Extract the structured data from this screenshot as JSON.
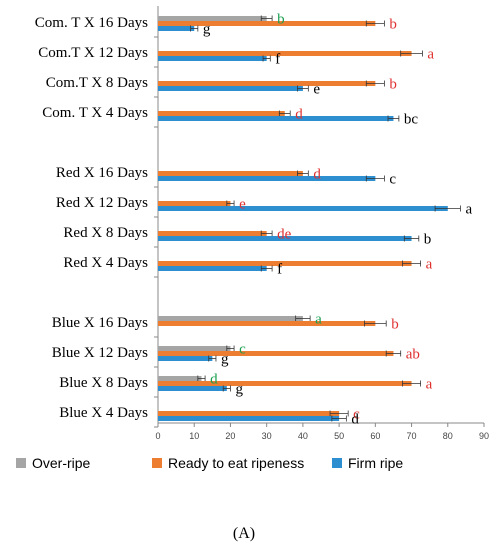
{
  "chart_data": {
    "type": "bar",
    "orientation": "horizontal",
    "xlim": [
      0,
      90
    ],
    "xticks": [
      0,
      10,
      20,
      30,
      40,
      50,
      60,
      70,
      80,
      90
    ],
    "panel_label": "(A)",
    "series": [
      {
        "name": "Over-ripe",
        "color": "#a5a5a5"
      },
      {
        "name": "Ready to eat ripeness",
        "color": "#ed7d31"
      },
      {
        "name": "Firm ripe",
        "color": "#2e8fd0"
      }
    ],
    "groups": [
      {
        "categories": [
          {
            "label": "Com. T X 16 Days",
            "bars": [
              {
                "series": 0,
                "value": 30,
                "err": 1.5,
                "letter": "b",
                "letter_color": "#1a9e50"
              },
              {
                "series": 1,
                "value": 60,
                "err": 2.5,
                "letter": "b",
                "letter_color": "#e03030"
              },
              {
                "series": 2,
                "value": 10,
                "err": 1.0,
                "letter": "g",
                "letter_color": "#000000"
              }
            ]
          },
          {
            "label": "Com.T X 12 Days",
            "bars": [
              {
                "series": 1,
                "value": 70,
                "err": 3.0,
                "letter": "a",
                "letter_color": "#e03030"
              },
              {
                "series": 2,
                "value": 30,
                "err": 1.0,
                "letter": "f",
                "letter_color": "#000000"
              }
            ]
          },
          {
            "label": "Com.T X 8 Days",
            "bars": [
              {
                "series": 1,
                "value": 60,
                "err": 2.5,
                "letter": "b",
                "letter_color": "#e03030"
              },
              {
                "series": 2,
                "value": 40,
                "err": 1.5,
                "letter": "e",
                "letter_color": "#000000"
              }
            ]
          },
          {
            "label": "Com. T X 4 Days",
            "bars": [
              {
                "series": 1,
                "value": 35,
                "err": 1.5,
                "letter": "d",
                "letter_color": "#e03030"
              },
              {
                "series": 2,
                "value": 65,
                "err": 1.5,
                "letter": "bc",
                "letter_color": "#000000"
              }
            ]
          }
        ]
      },
      {
        "categories": [
          {
            "label": "Red X 16 Days",
            "bars": [
              {
                "series": 1,
                "value": 40,
                "err": 1.5,
                "letter": "d",
                "letter_color": "#e03030"
              },
              {
                "series": 2,
                "value": 60,
                "err": 2.5,
                "letter": "c",
                "letter_color": "#000000"
              }
            ]
          },
          {
            "label": "Red X 12 Days",
            "bars": [
              {
                "series": 1,
                "value": 20,
                "err": 1.0,
                "letter": "e",
                "letter_color": "#e03030"
              },
              {
                "series": 2,
                "value": 80,
                "err": 3.5,
                "letter": "a",
                "letter_color": "#000000"
              }
            ]
          },
          {
            "label": "Red X 8 Days",
            "bars": [
              {
                "series": 1,
                "value": 30,
                "err": 1.5,
                "letter": "de",
                "letter_color": "#e03030"
              },
              {
                "series": 2,
                "value": 70,
                "err": 2.0,
                "letter": "b",
                "letter_color": "#000000"
              }
            ]
          },
          {
            "label": "Red X 4 Days",
            "bars": [
              {
                "series": 1,
                "value": 70,
                "err": 2.5,
                "letter": "a",
                "letter_color": "#e03030"
              },
              {
                "series": 2,
                "value": 30,
                "err": 1.5,
                "letter": "f",
                "letter_color": "#000000"
              }
            ]
          }
        ]
      },
      {
        "categories": [
          {
            "label": "Blue X 16 Days",
            "bars": [
              {
                "series": 0,
                "value": 40,
                "err": 2.0,
                "letter": "a",
                "letter_color": "#1a9e50"
              },
              {
                "series": 1,
                "value": 60,
                "err": 3.0,
                "letter": "b",
                "letter_color": "#e03030"
              }
            ]
          },
          {
            "label": "Blue X 12 Days",
            "bars": [
              {
                "series": 0,
                "value": 20,
                "err": 1.0,
                "letter": "c",
                "letter_color": "#1a9e50"
              },
              {
                "series": 1,
                "value": 65,
                "err": 2.0,
                "letter": "ab",
                "letter_color": "#e03030"
              },
              {
                "series": 2,
                "value": 15,
                "err": 1.0,
                "letter": "g",
                "letter_color": "#000000"
              }
            ]
          },
          {
            "label": "Blue X 8 Days",
            "bars": [
              {
                "series": 0,
                "value": 12,
                "err": 1.0,
                "letter": "d",
                "letter_color": "#1a9e50"
              },
              {
                "series": 1,
                "value": 70,
                "err": 2.5,
                "letter": "a",
                "letter_color": "#e03030"
              },
              {
                "series": 2,
                "value": 19,
                "err": 1.0,
                "letter": "g",
                "letter_color": "#000000"
              }
            ]
          },
          {
            "label": "Blue X 4 Days",
            "bars": [
              {
                "series": 1,
                "value": 50,
                "err": 2.5,
                "letter": "c",
                "letter_color": "#e03030"
              },
              {
                "series": 2,
                "value": 50,
                "err": 2.0,
                "letter": "d",
                "letter_color": "#000000"
              }
            ]
          }
        ]
      }
    ]
  }
}
